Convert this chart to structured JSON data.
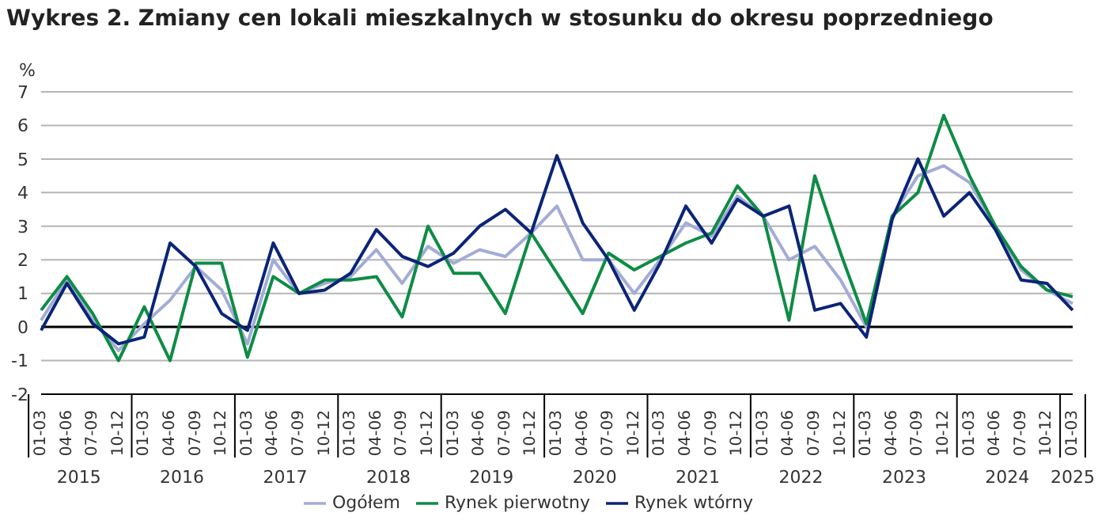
{
  "chart_data": {
    "type": "line",
    "title": "Wykres 2. Zmiany cen lokali mieszkalnych w stosunku do okresu poprzedniego",
    "ylabel": "%",
    "categories": [
      "01-03",
      "04-06",
      "07-09",
      "10-12",
      "01-03",
      "04-06",
      "07-09",
      "10-12",
      "01-03",
      "04-06",
      "07-09",
      "10-12",
      "01-03",
      "04-06",
      "07-09",
      "10-12",
      "01-03",
      "04-06",
      "07-09",
      "10-12",
      "01-03",
      "04-06",
      "07-09",
      "10-12",
      "01-03",
      "04-06",
      "07-09",
      "10-12",
      "01-03",
      "04-06",
      "07-09",
      "10-12",
      "01-03",
      "04-06",
      "07-09",
      "10-12",
      "01-03",
      "04-06",
      "07-09",
      "10-12",
      "01-03"
    ],
    "annotations": [
      "2015",
      "2016",
      "2017",
      "2018",
      "2019",
      "2020",
      "2021",
      "2022",
      "2023",
      "2024",
      "2025"
    ],
    "series": [
      {
        "name": "Ogółem",
        "color": "#a3acd6",
        "values": [
          0.2,
          1.4,
          0.2,
          -0.7,
          0.1,
          0.8,
          1.8,
          1.1,
          -0.5,
          2.0,
          1.0,
          1.3,
          1.5,
          2.3,
          1.3,
          2.4,
          1.9,
          2.3,
          2.1,
          2.8,
          3.6,
          2.0,
          2.0,
          1.0,
          2.0,
          3.1,
          2.7,
          3.9,
          3.3,
          2.0,
          2.4,
          1.4,
          0.0,
          3.3,
          4.5,
          4.8,
          4.3,
          3.0,
          1.7,
          1.1,
          0.7
        ]
      },
      {
        "name": "Rynek pierwotny",
        "color": "#0e8c45",
        "values": [
          0.5,
          1.5,
          0.4,
          -1.0,
          0.6,
          -1.0,
          1.9,
          1.9,
          -0.9,
          1.5,
          1.0,
          1.4,
          1.4,
          1.5,
          0.3,
          3.0,
          1.6,
          1.6,
          0.4,
          2.8,
          1.6,
          0.4,
          2.2,
          1.7,
          2.1,
          2.5,
          2.8,
          4.2,
          3.3,
          0.2,
          4.5,
          2.2,
          0.1,
          3.3,
          4.0,
          6.3,
          4.5,
          3.0,
          1.8,
          1.1,
          0.9
        ]
      },
      {
        "name": "Rynek wtórny",
        "color": "#0b2478",
        "values": [
          -0.1,
          1.3,
          0.1,
          -0.5,
          -0.3,
          2.5,
          1.8,
          0.4,
          -0.1,
          2.5,
          1.0,
          1.1,
          1.6,
          2.9,
          2.1,
          1.8,
          2.2,
          3.0,
          3.5,
          2.8,
          5.1,
          3.1,
          2.0,
          0.5,
          1.9,
          3.6,
          2.5,
          3.8,
          3.3,
          3.6,
          0.5,
          0.7,
          -0.3,
          3.2,
          5.0,
          3.3,
          4.0,
          2.9,
          1.4,
          1.3,
          0.5
        ]
      }
    ],
    "ylim": [
      -2,
      7
    ],
    "yticks": [
      -2,
      -1,
      0,
      1,
      2,
      3,
      4,
      5,
      6,
      7
    ],
    "grid": "y",
    "legend": "bottom",
    "marker": "none",
    "line_style": "solid"
  }
}
